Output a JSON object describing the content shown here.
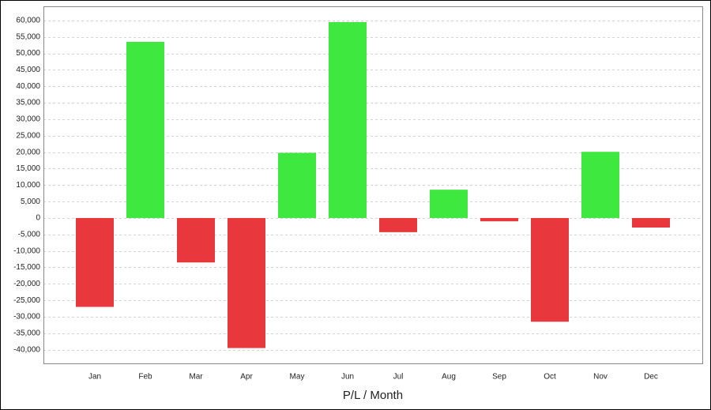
{
  "chart_data": {
    "type": "bar",
    "x_label": "P/L / Month",
    "categories": [
      "Jan",
      "Feb",
      "Mar",
      "Apr",
      "May",
      "Jun",
      "Jul",
      "Aug",
      "Sep",
      "Oct",
      "Nov",
      "Dec"
    ],
    "values": [
      -27000,
      53500,
      -13500,
      -39500,
      19800,
      59500,
      -4300,
      8600,
      -1000,
      -31500,
      20100,
      -2900
    ],
    "positive_color": "#3ee83e",
    "negative_color": "#e8373d",
    "ylim": [
      -44400,
      64300
    ],
    "yticks": [
      {
        "value": -40000,
        "label": "-40,000"
      },
      {
        "value": -35000,
        "label": "-35,000"
      },
      {
        "value": -30000,
        "label": "-30,000"
      },
      {
        "value": -25000,
        "label": "-25,000"
      },
      {
        "value": -20000,
        "label": "-20,000"
      },
      {
        "value": -15000,
        "label": "-15,000"
      },
      {
        "value": -10000,
        "label": "-10,000"
      },
      {
        "value": -5000,
        "label": "-5,000"
      },
      0,
      {
        "value": 5000,
        "label": "5,000"
      },
      {
        "value": 10000,
        "label": "10,000"
      },
      {
        "value": 15000,
        "label": "15,000"
      },
      {
        "value": 20000,
        "label": "20,000"
      },
      {
        "value": 25000,
        "label": "25,000"
      },
      {
        "value": 30000,
        "label": "30,000"
      },
      {
        "value": 35000,
        "label": "35,000"
      },
      {
        "value": 40000,
        "label": "40,000"
      },
      {
        "value": 45000,
        "label": "45,000"
      },
      {
        "value": 50000,
        "label": "50,000"
      },
      {
        "value": 55000,
        "label": "55,000"
      },
      {
        "value": 60000,
        "label": "60,000"
      }
    ],
    "grid": true
  }
}
